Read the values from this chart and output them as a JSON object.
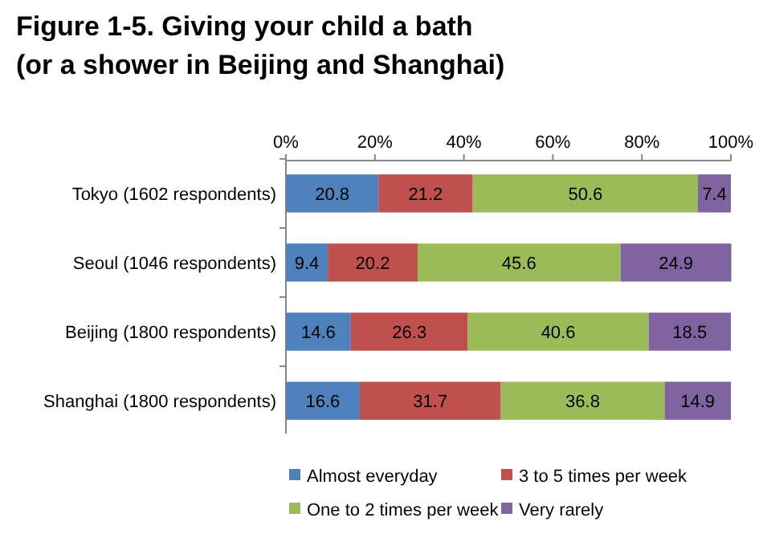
{
  "chart_data": {
    "type": "bar",
    "orientation": "horizontal",
    "stacked": true,
    "title": "Figure 1-5. Giving your child a bath\n(or a shower in Beijing and Shanghai)",
    "categories": [
      "Tokyo (1602 respondents)",
      "Seoul (1046 respondents)",
      "Beijing (1800 respondents)",
      "Shanghai (1800 respondents)"
    ],
    "series": [
      {
        "name": "Almost everyday",
        "color": "#4f81bd",
        "values": [
          20.8,
          9.4,
          14.6,
          16.6
        ]
      },
      {
        "name": "3 to 5 times per week",
        "color": "#c0504d",
        "values": [
          21.2,
          20.2,
          26.3,
          31.7
        ]
      },
      {
        "name": "One to 2 times per week",
        "color": "#9bbb59",
        "values": [
          50.6,
          45.6,
          40.6,
          36.8
        ]
      },
      {
        "name": "Very rarely",
        "color": "#8064a2",
        "values": [
          7.4,
          24.9,
          18.5,
          14.9
        ]
      }
    ],
    "xlim": [
      0,
      100
    ],
    "xticks": [
      {
        "value": 0,
        "label": "0%"
      },
      {
        "value": 20,
        "label": "20%"
      },
      {
        "value": 40,
        "label": "40%"
      },
      {
        "value": 60,
        "label": "60%"
      },
      {
        "value": 80,
        "label": "80%"
      },
      {
        "value": 100,
        "label": "100%"
      }
    ],
    "data_labels": true,
    "legend": "bottom"
  }
}
